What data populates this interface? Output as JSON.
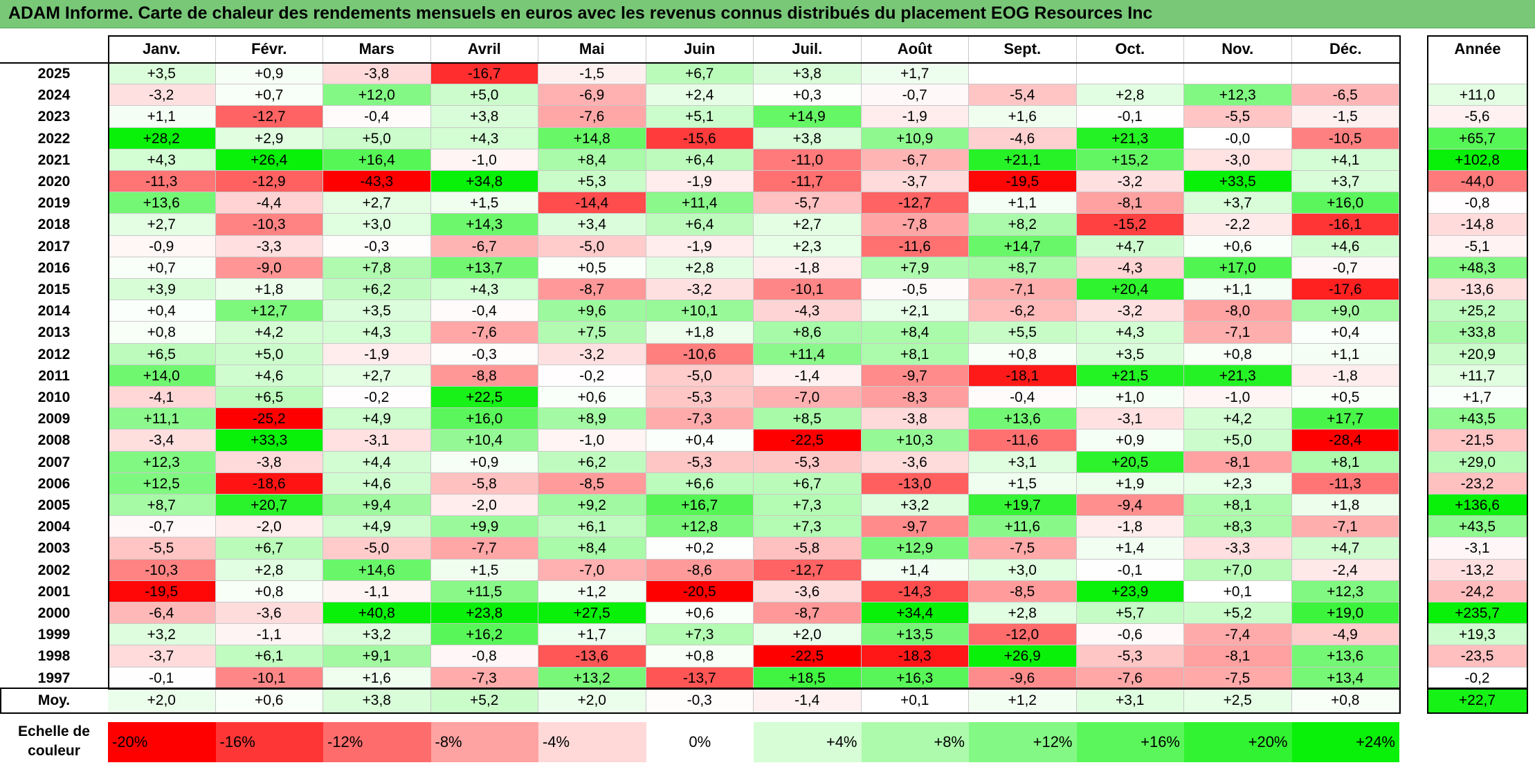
{
  "title": "ADAM Informe. Carte de chaleur des rendements mensuels en euros avec les revenus connus distribués du placement EOG Resources Inc",
  "chart_data": {
    "type": "heatmap",
    "title": "ADAM Informe. Carte de chaleur des rendements mensuels en euros avec les revenus connus distribués du placement EOG Resources Inc",
    "columns": [
      "Janv.",
      "Févr.",
      "Mars",
      "Avril",
      "Mai",
      "Juin",
      "Juil.",
      "Août",
      "Sept.",
      "Oct.",
      "Nov.",
      "Déc."
    ],
    "year_header": "Année",
    "rows": [
      {
        "year": "2025",
        "values": [
          "+3,5",
          "+0,9",
          "-3,8",
          "-16,7",
          "-1,5",
          "+6,7",
          "+3,8",
          "+1,7",
          "",
          "",
          "",
          ""
        ],
        "annual": ""
      },
      {
        "year": "2024",
        "values": [
          "-3,2",
          "+0,7",
          "+12,0",
          "+5,0",
          "-6,9",
          "+2,4",
          "+0,3",
          "-0,7",
          "-5,4",
          "+2,8",
          "+12,3",
          "-6,5"
        ],
        "annual": "+11,0"
      },
      {
        "year": "2023",
        "values": [
          "+1,1",
          "-12,7",
          "-0,4",
          "+3,8",
          "-7,6",
          "+5,1",
          "+14,9",
          "-1,9",
          "+1,6",
          "-0,1",
          "-5,5",
          "-1,5"
        ],
        "annual": "-5,6"
      },
      {
        "year": "2022",
        "values": [
          "+28,2",
          "+2,9",
          "+5,0",
          "+4,3",
          "+14,8",
          "-15,6",
          "+3,8",
          "+10,9",
          "-4,6",
          "+21,3",
          "-0,0",
          "-10,5"
        ],
        "annual": "+65,7"
      },
      {
        "year": "2021",
        "values": [
          "+4,3",
          "+26,4",
          "+16,4",
          "-1,0",
          "+8,4",
          "+6,4",
          "-11,0",
          "-6,7",
          "+21,1",
          "+15,2",
          "-3,0",
          "+4,1"
        ],
        "annual": "+102,8"
      },
      {
        "year": "2020",
        "values": [
          "-11,3",
          "-12,9",
          "-43,3",
          "+34,8",
          "+5,3",
          "-1,9",
          "-11,7",
          "-3,7",
          "-19,5",
          "-3,2",
          "+33,5",
          "+3,7"
        ],
        "annual": "-44,0"
      },
      {
        "year": "2019",
        "values": [
          "+13,6",
          "-4,4",
          "+2,7",
          "+1,5",
          "-14,4",
          "+11,4",
          "-5,7",
          "-12,7",
          "+1,1",
          "-8,1",
          "+3,7",
          "+16,0"
        ],
        "annual": "-0,8"
      },
      {
        "year": "2018",
        "values": [
          "+2,7",
          "-10,3",
          "+3,0",
          "+14,3",
          "+3,4",
          "+6,4",
          "+2,7",
          "-7,8",
          "+8,2",
          "-15,2",
          "-2,2",
          "-16,1"
        ],
        "annual": "-14,8"
      },
      {
        "year": "2017",
        "values": [
          "-0,9",
          "-3,3",
          "-0,3",
          "-6,7",
          "-5,0",
          "-1,9",
          "+2,3",
          "-11,6",
          "+14,7",
          "+4,7",
          "+0,6",
          "+4,6"
        ],
        "annual": "-5,1"
      },
      {
        "year": "2016",
        "values": [
          "+0,7",
          "-9,0",
          "+7,8",
          "+13,7",
          "+0,5",
          "+2,8",
          "-1,8",
          "+7,9",
          "+8,7",
          "-4,3",
          "+17,0",
          "-0,7"
        ],
        "annual": "+48,3"
      },
      {
        "year": "2015",
        "values": [
          "+3,9",
          "+1,8",
          "+6,2",
          "+4,3",
          "-8,7",
          "-3,2",
          "-10,1",
          "-0,5",
          "-7,1",
          "+20,4",
          "+1,1",
          "-17,6"
        ],
        "annual": "-13,6"
      },
      {
        "year": "2014",
        "values": [
          "+0,4",
          "+12,7",
          "+3,5",
          "-0,4",
          "+9,6",
          "+10,1",
          "-4,3",
          "+2,1",
          "-6,2",
          "-3,2",
          "-8,0",
          "+9,0"
        ],
        "annual": "+25,2"
      },
      {
        "year": "2013",
        "values": [
          "+0,8",
          "+4,2",
          "+4,3",
          "-7,6",
          "+7,5",
          "+1,8",
          "+8,6",
          "+8,4",
          "+5,5",
          "+4,3",
          "-7,1",
          "+0,4"
        ],
        "annual": "+33,8"
      },
      {
        "year": "2012",
        "values": [
          "+6,5",
          "+5,0",
          "-1,9",
          "-0,3",
          "-3,2",
          "-10,6",
          "+11,4",
          "+8,1",
          "+0,8",
          "+3,5",
          "+0,8",
          "+1,1"
        ],
        "annual": "+20,9"
      },
      {
        "year": "2011",
        "values": [
          "+14,0",
          "+4,6",
          "+2,7",
          "-8,8",
          "-0,2",
          "-5,0",
          "-1,4",
          "-9,7",
          "-18,1",
          "+21,5",
          "+21,3",
          "-1,8"
        ],
        "annual": "+11,7"
      },
      {
        "year": "2010",
        "values": [
          "-4,1",
          "+6,5",
          "-0,2",
          "+22,5",
          "+0,6",
          "-5,3",
          "-7,0",
          "-8,3",
          "-0,4",
          "+1,0",
          "-1,0",
          "+0,5"
        ],
        "annual": "+1,7"
      },
      {
        "year": "2009",
        "values": [
          "+11,1",
          "-25,2",
          "+4,9",
          "+16,0",
          "+8,9",
          "-7,3",
          "+8,5",
          "-3,8",
          "+13,6",
          "-3,1",
          "+4,2",
          "+17,7"
        ],
        "annual": "+43,5"
      },
      {
        "year": "2008",
        "values": [
          "-3,4",
          "+33,3",
          "-3,1",
          "+10,4",
          "-1,0",
          "+0,4",
          "-22,5",
          "+10,3",
          "-11,6",
          "+0,9",
          "+5,0",
          "-28,4"
        ],
        "annual": "-21,5"
      },
      {
        "year": "2007",
        "values": [
          "+12,3",
          "-3,8",
          "+4,4",
          "+0,9",
          "+6,2",
          "-5,3",
          "-5,3",
          "-3,6",
          "+3,1",
          "+20,5",
          "-8,1",
          "+8,1"
        ],
        "annual": "+29,0"
      },
      {
        "year": "2006",
        "values": [
          "+12,5",
          "-18,6",
          "+4,6",
          "-5,8",
          "-8,5",
          "+6,6",
          "+6,7",
          "-13,0",
          "+1,5",
          "+1,9",
          "+2,3",
          "-11,3"
        ],
        "annual": "-23,2"
      },
      {
        "year": "2005",
        "values": [
          "+8,7",
          "+20,7",
          "+9,4",
          "-2,0",
          "+9,2",
          "+16,7",
          "+7,3",
          "+3,2",
          "+19,7",
          "-9,4",
          "+8,1",
          "+1,8"
        ],
        "annual": "+136,6"
      },
      {
        "year": "2004",
        "values": [
          "-0,7",
          "-2,0",
          "+4,9",
          "+9,9",
          "+6,1",
          "+12,8",
          "+7,3",
          "-9,7",
          "+11,6",
          "-1,8",
          "+8,3",
          "-7,1"
        ],
        "annual": "+43,5"
      },
      {
        "year": "2003",
        "values": [
          "-5,5",
          "+6,7",
          "-5,0",
          "-7,7",
          "+8,4",
          "+0,2",
          "-5,8",
          "+12,9",
          "-7,5",
          "+1,4",
          "-3,3",
          "+4,7"
        ],
        "annual": "-3,1"
      },
      {
        "year": "2002",
        "values": [
          "-10,3",
          "+2,8",
          "+14,6",
          "+1,5",
          "-7,0",
          "-8,6",
          "-12,7",
          "+1,4",
          "+3,0",
          "-0,1",
          "+7,0",
          "-2,4"
        ],
        "annual": "-13,2"
      },
      {
        "year": "2001",
        "values": [
          "-19,5",
          "+0,8",
          "-1,1",
          "+11,5",
          "+1,2",
          "-20,5",
          "-3,6",
          "-14,3",
          "-8,5",
          "+23,9",
          "+0,1",
          "+12,3"
        ],
        "annual": "-24,2"
      },
      {
        "year": "2000",
        "values": [
          "-6,4",
          "-3,6",
          "+40,8",
          "+23,8",
          "+27,5",
          "+0,6",
          "-8,7",
          "+34,4",
          "+2,8",
          "+5,7",
          "+5,2",
          "+19,0"
        ],
        "annual": "+235,7"
      },
      {
        "year": "1999",
        "values": [
          "+3,2",
          "-1,1",
          "+3,2",
          "+16,2",
          "+1,7",
          "+7,3",
          "+2,0",
          "+13,5",
          "-12,0",
          "-0,6",
          "-7,4",
          "-4,9"
        ],
        "annual": "+19,3"
      },
      {
        "year": "1998",
        "values": [
          "-3,7",
          "+6,1",
          "+9,1",
          "-0,8",
          "-13,6",
          "+0,8",
          "-22,5",
          "-18,3",
          "+26,9",
          "-5,3",
          "-8,1",
          "+13,6"
        ],
        "annual": "-23,5"
      },
      {
        "year": "1997",
        "values": [
          "-0,1",
          "-10,1",
          "+1,6",
          "-7,3",
          "+13,2",
          "-13,7",
          "+18,5",
          "+16,3",
          "-9,6",
          "-7,6",
          "-7,5",
          "+13,4"
        ],
        "annual": "-0,2"
      }
    ],
    "average": {
      "label": "Moy.",
      "values": [
        "+2,0",
        "+0,6",
        "+3,8",
        "+5,2",
        "+2,0",
        "-0,3",
        "-1,4",
        "+0,1",
        "+1,2",
        "+3,1",
        "+2,5",
        "+0,8"
      ],
      "annual": "+22,7"
    },
    "color_scale": {
      "label": "Echelle de couleur",
      "stops": [
        {
          "label": "-20%",
          "value": -20,
          "color": "#ff0000"
        },
        {
          "label": "-16%",
          "value": -16,
          "color": "#ff3636"
        },
        {
          "label": "-12%",
          "value": -12,
          "color": "#ff6c6c"
        },
        {
          "label": "-8%",
          "value": -8,
          "color": "#ffa2a2"
        },
        {
          "label": "-4%",
          "value": -4,
          "color": "#ffd8d8"
        },
        {
          "label": "0%",
          "value": 0,
          "color": "#ffffff"
        },
        {
          "label": "+4%",
          "value": 4,
          "color": "#d6fdd6"
        },
        {
          "label": "+8%",
          "value": 8,
          "color": "#adfaad"
        },
        {
          "label": "+12%",
          "value": 12,
          "color": "#84f884"
        },
        {
          "label": "+16%",
          "value": 16,
          "color": "#5bf65b"
        },
        {
          "label": "+20%",
          "value": 20,
          "color": "#32f332"
        },
        {
          "label": "+24%",
          "value": 24,
          "color": "#09f109"
        }
      ]
    }
  }
}
